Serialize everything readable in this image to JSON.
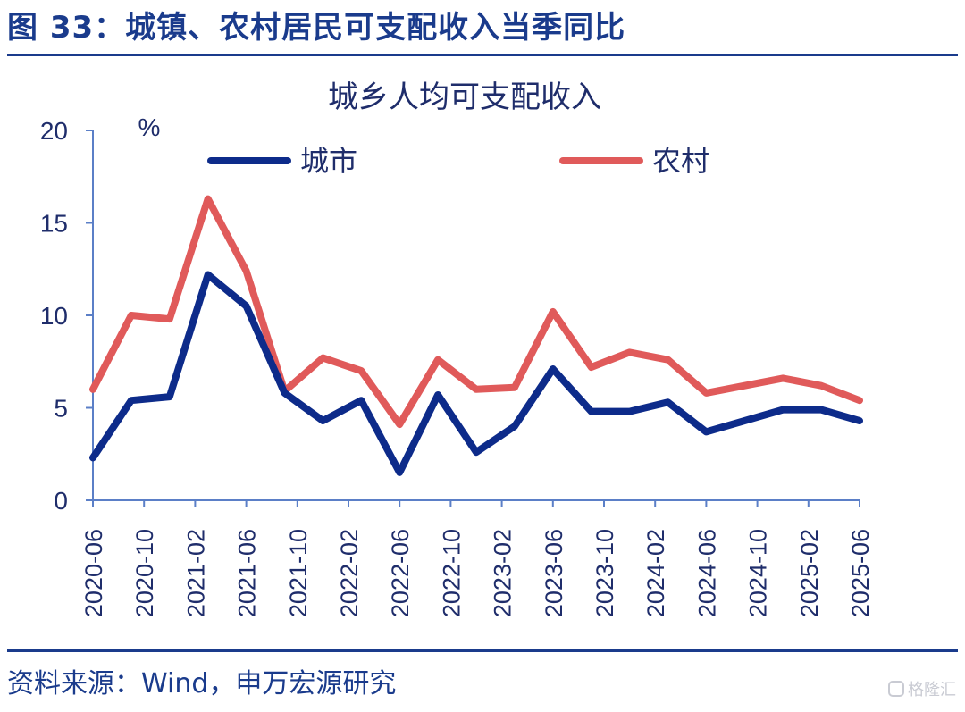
{
  "figure": {
    "title": "图 33：城镇、农村居民可支配收入当季同比",
    "source": "资料来源：Wind，申万宏源研究",
    "watermark": "格隆汇"
  },
  "chart_data": {
    "type": "line",
    "title": "城乡人均可支配收入",
    "ylabel": "%",
    "ylim": [
      0,
      20
    ],
    "yticks": [
      0,
      5,
      10,
      15,
      20
    ],
    "legend_position": "top",
    "grid": false,
    "x": [
      "2020-06",
      "2020-09",
      "2020-12",
      "2021-03",
      "2021-06",
      "2021-09",
      "2021-12",
      "2022-03",
      "2022-06",
      "2022-09",
      "2022-12",
      "2023-03",
      "2023-06",
      "2023-09",
      "2023-12",
      "2024-03",
      "2024-06",
      "2024-09",
      "2024-12",
      "2025-03",
      "2025-06"
    ],
    "xtick_labels": [
      "2020-06",
      "2020-10",
      "2021-02",
      "2021-06",
      "2021-10",
      "2022-02",
      "2022-06",
      "2022-10",
      "2023-02",
      "2023-06",
      "2023-10",
      "2024-02",
      "2024-06",
      "2024-10",
      "2025-02",
      "2025-06"
    ],
    "series": [
      {
        "name": "城市",
        "color": "#0d2b8a",
        "values": [
          2.3,
          5.4,
          5.6,
          12.2,
          10.5,
          5.8,
          4.3,
          5.4,
          1.5,
          5.7,
          2.6,
          4.0,
          7.1,
          4.8,
          4.8,
          5.3,
          3.7,
          4.3,
          4.9,
          4.9,
          4.3
        ]
      },
      {
        "name": "农村",
        "color": "#e05a5a",
        "values": [
          6.0,
          10.0,
          9.8,
          16.3,
          12.4,
          5.9,
          7.7,
          7.0,
          4.1,
          7.6,
          6.0,
          6.1,
          10.2,
          7.2,
          8.0,
          7.6,
          5.8,
          6.2,
          6.6,
          6.2,
          5.4
        ]
      }
    ]
  }
}
